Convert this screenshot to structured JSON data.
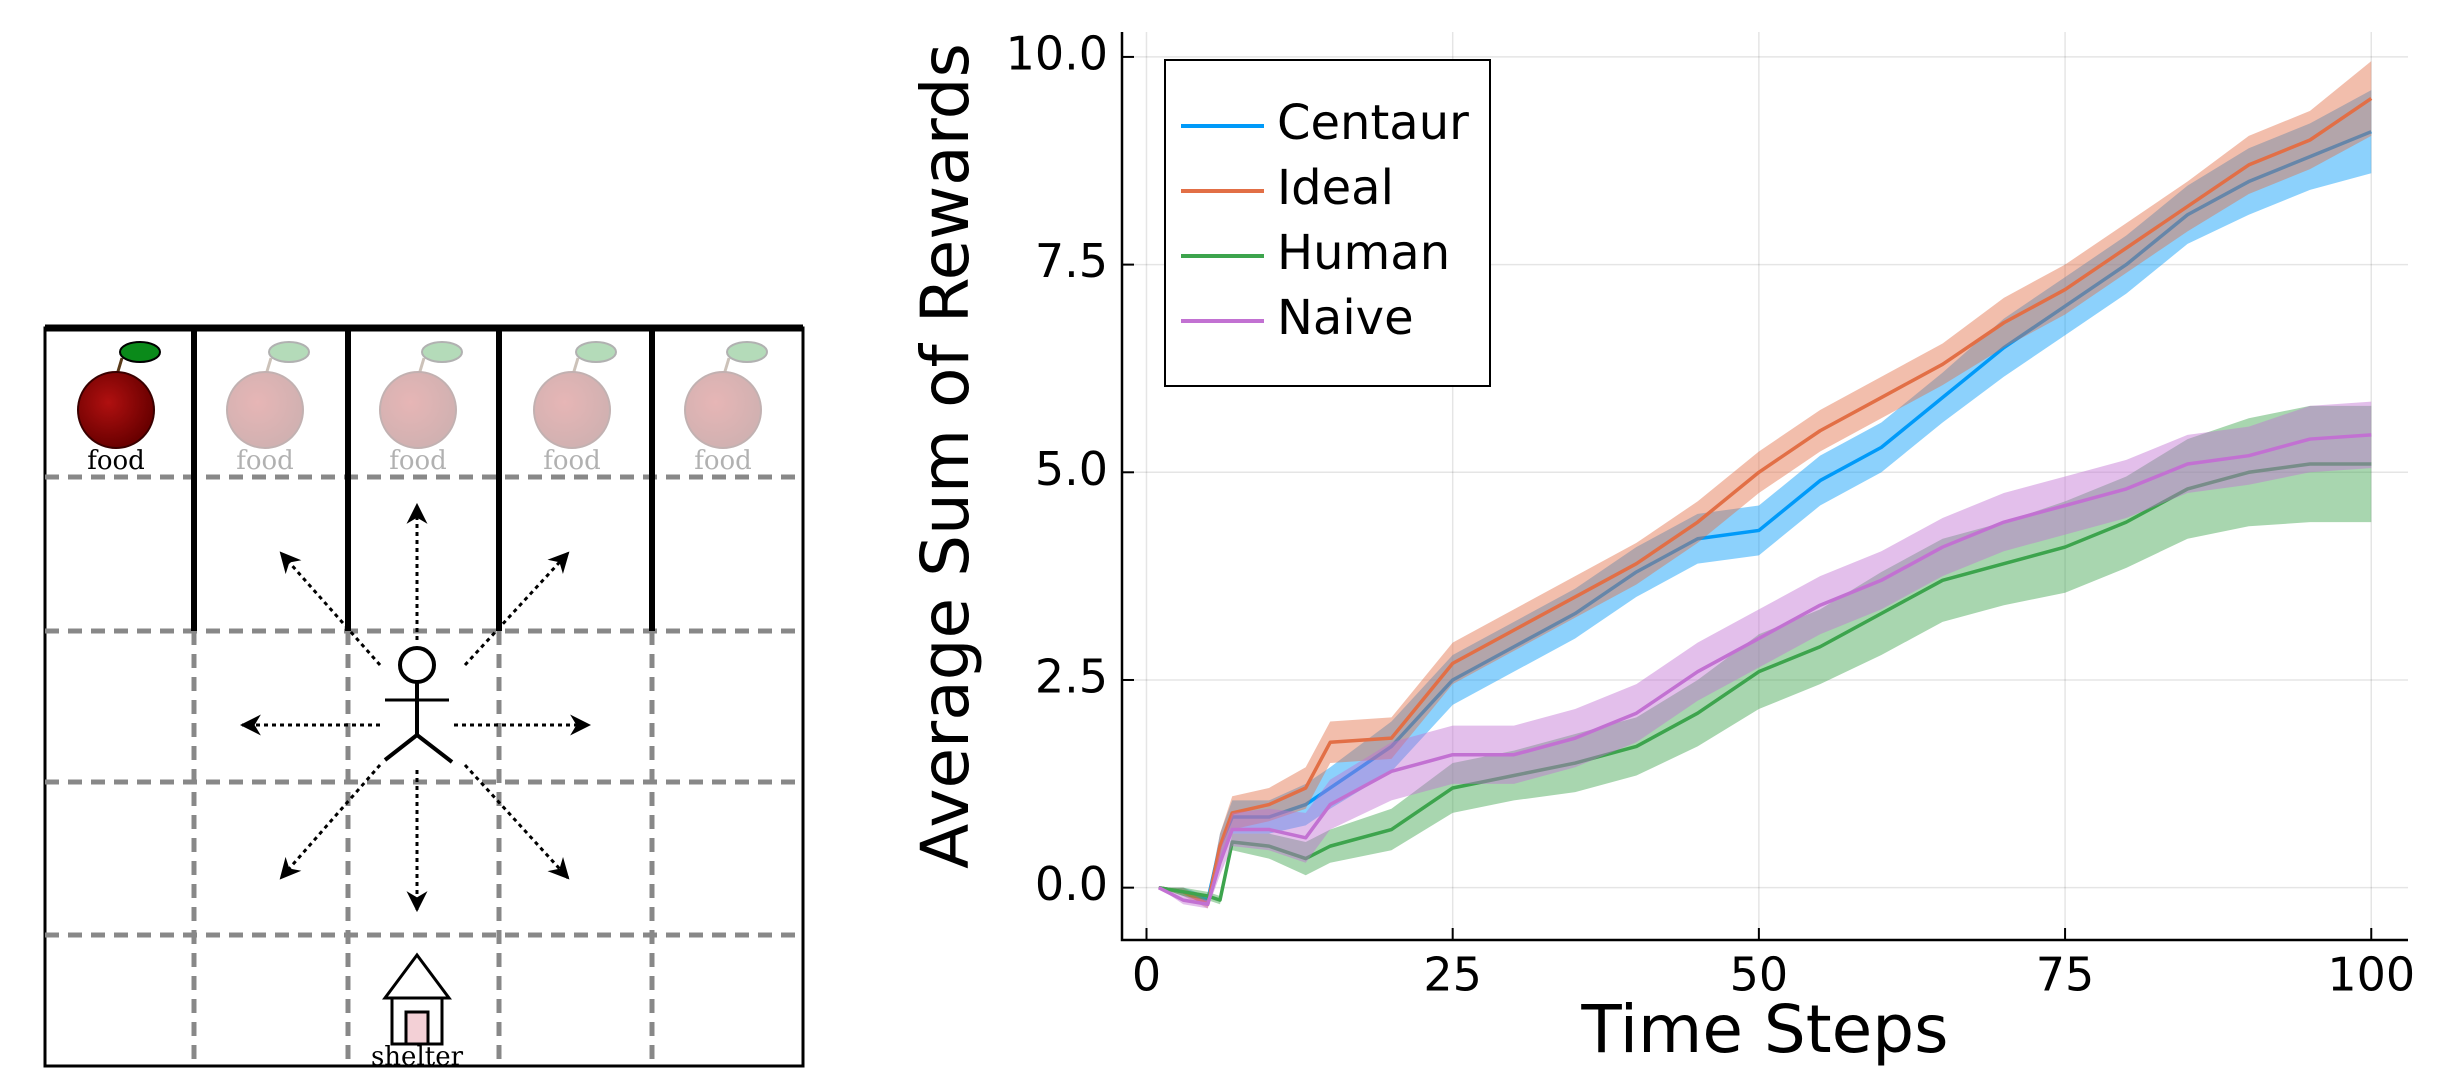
{
  "gridworld": {
    "food_labels": [
      "food",
      "food",
      "food",
      "food",
      "food"
    ],
    "shelter_label": "shelter"
  },
  "chart_data": {
    "type": "line",
    "y_label": "Average Sum of Rewards",
    "x_label": "Time Steps",
    "x": [
      1,
      3,
      5,
      6,
      7,
      10,
      13,
      15,
      20,
      25,
      30,
      35,
      40,
      45,
      50,
      55,
      60,
      65,
      70,
      75,
      80,
      85,
      90,
      95,
      100
    ],
    "series": [
      {
        "name": "Centaur",
        "color": "#009af9",
        "values": [
          0,
          -0.05,
          -0.15,
          0.5,
          0.85,
          0.85,
          1.0,
          1.2,
          1.7,
          2.5,
          2.9,
          3.3,
          3.8,
          4.2,
          4.3,
          4.9,
          5.3,
          5.9,
          6.5,
          7.0,
          7.5,
          8.1,
          8.5,
          8.8,
          9.1
        ],
        "error": [
          0,
          0.05,
          0.05,
          0.15,
          0.2,
          0.2,
          0.25,
          0.25,
          0.3,
          0.3,
          0.3,
          0.3,
          0.3,
          0.3,
          0.3,
          0.3,
          0.3,
          0.3,
          0.35,
          0.35,
          0.35,
          0.35,
          0.4,
          0.4,
          0.5
        ]
      },
      {
        "name": "Ideal",
        "color": "#e26f46",
        "values": [
          0,
          -0.05,
          -0.2,
          0.5,
          0.9,
          1.0,
          1.2,
          1.75,
          1.8,
          2.7,
          3.1,
          3.5,
          3.9,
          4.4,
          5.0,
          5.5,
          5.9,
          6.3,
          6.8,
          7.2,
          7.7,
          8.2,
          8.7,
          9.0,
          9.5
        ],
        "error": [
          0,
          0.05,
          0.05,
          0.15,
          0.2,
          0.2,
          0.25,
          0.25,
          0.25,
          0.25,
          0.25,
          0.25,
          0.25,
          0.25,
          0.25,
          0.25,
          0.25,
          0.25,
          0.3,
          0.3,
          0.3,
          0.3,
          0.35,
          0.35,
          0.45
        ]
      },
      {
        "name": "Human",
        "color": "#3da44d",
        "values": [
          0,
          -0.05,
          -0.1,
          -0.15,
          0.55,
          0.5,
          0.35,
          0.5,
          0.7,
          1.2,
          1.35,
          1.5,
          1.7,
          2.1,
          2.6,
          2.9,
          3.3,
          3.7,
          3.9,
          4.1,
          4.4,
          4.8,
          5.0,
          5.1,
          5.1
        ],
        "error": [
          0,
          0.05,
          0.05,
          0.05,
          0.1,
          0.15,
          0.2,
          0.2,
          0.25,
          0.3,
          0.3,
          0.35,
          0.35,
          0.4,
          0.45,
          0.45,
          0.5,
          0.5,
          0.5,
          0.55,
          0.55,
          0.6,
          0.65,
          0.7,
          0.7
        ]
      },
      {
        "name": "Naive",
        "color": "#c271d2",
        "values": [
          0,
          -0.15,
          -0.2,
          0.3,
          0.7,
          0.7,
          0.6,
          1.0,
          1.4,
          1.6,
          1.6,
          1.8,
          2.1,
          2.6,
          3.0,
          3.4,
          3.7,
          4.1,
          4.4,
          4.6,
          4.8,
          5.1,
          5.2,
          5.4,
          5.45
        ],
        "error": [
          0,
          0.05,
          0.05,
          0.15,
          0.2,
          0.25,
          0.3,
          0.3,
          0.35,
          0.35,
          0.35,
          0.35,
          0.35,
          0.35,
          0.35,
          0.35,
          0.35,
          0.35,
          0.35,
          0.35,
          0.35,
          0.35,
          0.35,
          0.4,
          0.4
        ]
      }
    ],
    "xlim": [
      -2,
      103
    ],
    "ylim": [
      -0.63,
      10.3
    ],
    "xticks": [
      0,
      25,
      50,
      75,
      100
    ],
    "yticks": [
      {
        "value": 0,
        "label": "0.0"
      },
      2.5,
      {
        "value": 5,
        "label": "5.0"
      },
      7.5,
      {
        "value": 10,
        "label": "10.0"
      }
    ],
    "grid": true,
    "legend": "top-left"
  }
}
